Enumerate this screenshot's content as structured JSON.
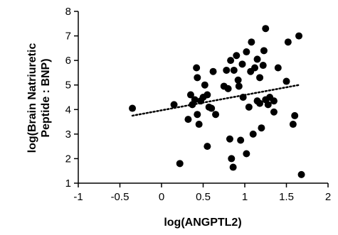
{
  "chart_data": {
    "type": "scatter",
    "title": "",
    "xlabel": "log(ANGPTL2)",
    "ylabel": [
      "log(Brain Natriuretic",
      "Peptide : BNP)"
    ],
    "xlim": [
      -1,
      2
    ],
    "ylim": [
      1,
      8
    ],
    "x_ticks": [
      "-1",
      "-0.5",
      "0",
      "0.5",
      "1",
      "1.5",
      "2"
    ],
    "y_ticks": [
      "1",
      "2",
      "3",
      "4",
      "5",
      "6",
      "7",
      "8"
    ],
    "grid": false,
    "legend": "none",
    "marker_color": "#000000",
    "trendline": {
      "style": "dotted",
      "x": [
        -0.35,
        1.65
      ],
      "y": [
        3.75,
        5.0
      ]
    },
    "points": [
      {
        "x": -0.35,
        "y": 4.05
      },
      {
        "x": 0.15,
        "y": 4.2
      },
      {
        "x": 0.22,
        "y": 1.8
      },
      {
        "x": 0.32,
        "y": 3.6
      },
      {
        "x": 0.35,
        "y": 4.6
      },
      {
        "x": 0.37,
        "y": 4.2
      },
      {
        "x": 0.4,
        "y": 4.4
      },
      {
        "x": 0.42,
        "y": 5.7
      },
      {
        "x": 0.43,
        "y": 5.3
      },
      {
        "x": 0.43,
        "y": 3.8
      },
      {
        "x": 0.45,
        "y": 3.4
      },
      {
        "x": 0.47,
        "y": 4.35
      },
      {
        "x": 0.5,
        "y": 4.5
      },
      {
        "x": 0.52,
        "y": 5.0
      },
      {
        "x": 0.55,
        "y": 4.6
      },
      {
        "x": 0.55,
        "y": 2.5
      },
      {
        "x": 0.57,
        "y": 4.1
      },
      {
        "x": 0.6,
        "y": 4.05
      },
      {
        "x": 0.62,
        "y": 5.55
      },
      {
        "x": 0.65,
        "y": 3.8
      },
      {
        "x": 0.75,
        "y": 4.95
      },
      {
        "x": 0.78,
        "y": 5.6
      },
      {
        "x": 0.8,
        "y": 4.85
      },
      {
        "x": 0.82,
        "y": 2.8
      },
      {
        "x": 0.83,
        "y": 6.0
      },
      {
        "x": 0.84,
        "y": 2.0
      },
      {
        "x": 0.86,
        "y": 1.65
      },
      {
        "x": 0.87,
        "y": 5.6
      },
      {
        "x": 0.9,
        "y": 6.2
      },
      {
        "x": 0.92,
        "y": 5.2
      },
      {
        "x": 0.93,
        "y": 4.95
      },
      {
        "x": 0.95,
        "y": 2.75
      },
      {
        "x": 0.97,
        "y": 5.85
      },
      {
        "x": 0.98,
        "y": 4.5
      },
      {
        "x": 1.02,
        "y": 6.35
      },
      {
        "x": 1.02,
        "y": 2.2
      },
      {
        "x": 1.05,
        "y": 4.1
      },
      {
        "x": 1.07,
        "y": 5.55
      },
      {
        "x": 1.08,
        "y": 6.75
      },
      {
        "x": 1.1,
        "y": 3.0
      },
      {
        "x": 1.12,
        "y": 5.7
      },
      {
        "x": 1.15,
        "y": 6.05
      },
      {
        "x": 1.15,
        "y": 4.35
      },
      {
        "x": 1.18,
        "y": 5.3
      },
      {
        "x": 1.18,
        "y": 4.25
      },
      {
        "x": 1.2,
        "y": 3.25
      },
      {
        "x": 1.22,
        "y": 5.8
      },
      {
        "x": 1.23,
        "y": 6.4
      },
      {
        "x": 1.25,
        "y": 7.3
      },
      {
        "x": 1.25,
        "y": 4.4
      },
      {
        "x": 1.28,
        "y": 4.2
      },
      {
        "x": 1.3,
        "y": 4.5
      },
      {
        "x": 1.35,
        "y": 4.35
      },
      {
        "x": 1.35,
        "y": 3.9
      },
      {
        "x": 1.4,
        "y": 5.7
      },
      {
        "x": 1.5,
        "y": 5.15
      },
      {
        "x": 1.52,
        "y": 6.75
      },
      {
        "x": 1.58,
        "y": 3.4
      },
      {
        "x": 1.6,
        "y": 3.75
      },
      {
        "x": 1.65,
        "y": 7.0
      },
      {
        "x": 1.68,
        "y": 1.35
      }
    ]
  }
}
